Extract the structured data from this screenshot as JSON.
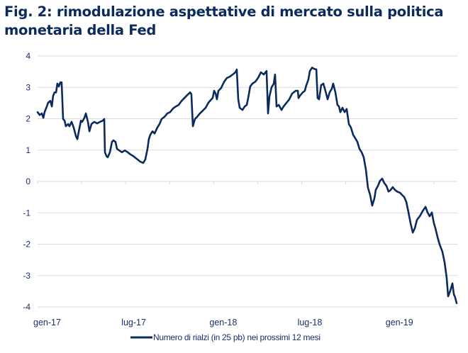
{
  "title": "Fig. 2: rimodulazione aspettative di mercato sulla politica monetaria della Fed",
  "chart_data": {
    "type": "line",
    "title": "Fig. 2: rimodulazione aspettative di mercato sulla politica monetaria della Fed",
    "xlabel": "",
    "ylabel": "",
    "ylim": [
      -4,
      4
    ],
    "yticks": [
      "4",
      "3",
      "2",
      "1",
      "0",
      "-1",
      "-2",
      "-3",
      "-4"
    ],
    "ytick_values": [
      4,
      3,
      2,
      1,
      0,
      -1,
      -2,
      -3,
      -4
    ],
    "xlim_months_from_gen17": [
      0,
      28.6
    ],
    "xticks": [
      {
        "label": "gen-17",
        "month": 0
      },
      {
        "label": "lug-17",
        "month": 6
      },
      {
        "label": "gen-18",
        "month": 12
      },
      {
        "label": "lug-18",
        "month": 18
      },
      {
        "label": "gen-19",
        "month": 24
      }
    ],
    "minor_tick_months": [
      0,
      3,
      6,
      9,
      12,
      15,
      18,
      21,
      24,
      27
    ],
    "grid": true,
    "legend_position": "bottom",
    "color": "#0b2a5e",
    "series": [
      {
        "name": "Numero di rialzi  (in 25 pb) nei prossimi 12 mesi",
        "x_unit": "months since gen-17",
        "points": [
          [
            0.0,
            2.21
          ],
          [
            0.14,
            2.12
          ],
          [
            0.29,
            2.17
          ],
          [
            0.39,
            2.03
          ],
          [
            0.48,
            2.21
          ],
          [
            0.63,
            2.39
          ],
          [
            0.72,
            2.51
          ],
          [
            0.87,
            2.57
          ],
          [
            0.97,
            2.39
          ],
          [
            1.06,
            2.73
          ],
          [
            1.16,
            2.84
          ],
          [
            1.26,
            2.84
          ],
          [
            1.35,
            3.12
          ],
          [
            1.45,
            3.03
          ],
          [
            1.55,
            3.16
          ],
          [
            1.64,
            3.16
          ],
          [
            1.74,
            1.99
          ],
          [
            1.84,
            1.94
          ],
          [
            1.93,
            1.76
          ],
          [
            2.08,
            1.83
          ],
          [
            2.17,
            1.76
          ],
          [
            2.32,
            1.9
          ],
          [
            2.46,
            1.72
          ],
          [
            2.61,
            1.45
          ],
          [
            2.71,
            1.35
          ],
          [
            2.8,
            1.58
          ],
          [
            2.95,
            1.94
          ],
          [
            3.04,
            1.9
          ],
          [
            3.19,
            2.03
          ],
          [
            3.29,
            2.17
          ],
          [
            3.43,
            1.9
          ],
          [
            3.53,
            1.6
          ],
          [
            3.67,
            1.83
          ],
          [
            3.86,
            1.9
          ],
          [
            4.06,
            1.85
          ],
          [
            4.25,
            1.9
          ],
          [
            4.44,
            1.94
          ],
          [
            4.54,
            1.99
          ],
          [
            4.59,
            0.93
          ],
          [
            4.69,
            0.81
          ],
          [
            4.78,
            0.77
          ],
          [
            4.93,
            0.93
          ],
          [
            5.07,
            1.26
          ],
          [
            5.17,
            1.31
          ],
          [
            5.31,
            1.26
          ],
          [
            5.41,
            1.04
          ],
          [
            5.56,
            0.99
          ],
          [
            5.75,
            0.93
          ],
          [
            5.94,
            0.99
          ],
          [
            6.14,
            0.93
          ],
          [
            6.33,
            0.86
          ],
          [
            6.52,
            0.81
          ],
          [
            6.62,
            0.77
          ],
          [
            6.81,
            0.7
          ],
          [
            7.0,
            0.63
          ],
          [
            7.2,
            0.59
          ],
          [
            7.34,
            0.7
          ],
          [
            7.49,
            1.04
          ],
          [
            7.58,
            1.35
          ],
          [
            7.68,
            1.49
          ],
          [
            7.83,
            1.6
          ],
          [
            7.97,
            1.53
          ],
          [
            8.16,
            1.72
          ],
          [
            8.31,
            1.83
          ],
          [
            8.45,
            1.99
          ],
          [
            8.65,
            2.06
          ],
          [
            8.84,
            2.17
          ],
          [
            9.03,
            2.21
          ],
          [
            9.23,
            2.33
          ],
          [
            9.42,
            2.39
          ],
          [
            9.61,
            2.44
          ],
          [
            9.81,
            2.57
          ],
          [
            10.0,
            2.66
          ],
          [
            10.19,
            2.75
          ],
          [
            10.39,
            2.84
          ],
          [
            10.48,
            2.78
          ],
          [
            10.58,
            1.76
          ],
          [
            10.72,
            1.99
          ],
          [
            10.87,
            2.06
          ],
          [
            11.06,
            2.17
          ],
          [
            11.26,
            2.26
          ],
          [
            11.45,
            2.35
          ],
          [
            11.64,
            2.51
          ],
          [
            11.84,
            2.62
          ],
          [
            11.93,
            2.66
          ],
          [
            12.03,
            2.89
          ],
          [
            12.13,
            2.8
          ],
          [
            12.22,
            2.62
          ],
          [
            12.32,
            2.89
          ],
          [
            12.51,
            2.98
          ],
          [
            12.71,
            3.18
          ],
          [
            12.9,
            3.3
          ],
          [
            13.09,
            3.34
          ],
          [
            13.29,
            3.41
          ],
          [
            13.48,
            3.48
          ],
          [
            13.57,
            3.57
          ],
          [
            13.67,
            2.62
          ],
          [
            13.77,
            2.35
          ],
          [
            13.96,
            2.28
          ],
          [
            14.11,
            2.39
          ],
          [
            14.25,
            2.44
          ],
          [
            14.35,
            2.66
          ],
          [
            14.49,
            3.03
          ],
          [
            14.64,
            3.12
          ],
          [
            14.83,
            3.18
          ],
          [
            15.02,
            3.3
          ],
          [
            15.22,
            3.48
          ],
          [
            15.41,
            3.41
          ],
          [
            15.6,
            3.52
          ],
          [
            15.7,
            2.17
          ],
          [
            15.8,
            2.71
          ],
          [
            15.94,
            3.0
          ],
          [
            16.09,
            3.12
          ],
          [
            16.18,
            3.41
          ],
          [
            16.28,
            2.39
          ],
          [
            16.43,
            2.44
          ],
          [
            16.62,
            2.28
          ],
          [
            16.76,
            2.39
          ],
          [
            16.96,
            2.51
          ],
          [
            17.15,
            2.62
          ],
          [
            17.34,
            2.8
          ],
          [
            17.58,
            2.89
          ],
          [
            17.73,
            2.89
          ],
          [
            17.78,
            2.66
          ],
          [
            17.87,
            2.73
          ],
          [
            18.07,
            2.84
          ],
          [
            18.21,
            2.89
          ],
          [
            18.31,
            3.07
          ],
          [
            18.45,
            3.25
          ],
          [
            18.55,
            3.52
          ],
          [
            18.7,
            3.63
          ],
          [
            18.84,
            3.59
          ],
          [
            18.99,
            3.57
          ],
          [
            19.08,
            2.66
          ],
          [
            19.18,
            2.62
          ],
          [
            19.32,
            3.07
          ],
          [
            19.47,
            3.12
          ],
          [
            19.61,
            2.89
          ],
          [
            19.76,
            2.62
          ],
          [
            19.9,
            2.84
          ],
          [
            20.05,
            2.96
          ],
          [
            20.14,
            3.12
          ],
          [
            20.29,
            2.84
          ],
          [
            20.43,
            2.44
          ],
          [
            20.53,
            2.39
          ],
          [
            20.63,
            2.21
          ],
          [
            20.77,
            2.35
          ],
          [
            20.92,
            2.21
          ],
          [
            21.06,
            2.31
          ],
          [
            21.21,
            1.83
          ],
          [
            21.35,
            1.72
          ],
          [
            21.5,
            1.49
          ],
          [
            21.64,
            1.38
          ],
          [
            21.79,
            1.26
          ],
          [
            21.93,
            1.04
          ],
          [
            22.08,
            0.93
          ],
          [
            22.22,
            0.77
          ],
          [
            22.37,
            0.38
          ],
          [
            22.51,
            -0.2
          ],
          [
            22.66,
            -0.43
          ],
          [
            22.8,
            -0.77
          ],
          [
            22.95,
            -0.54
          ],
          [
            23.04,
            -0.27
          ],
          [
            23.19,
            -0.14
          ],
          [
            23.33,
            0.02
          ],
          [
            23.48,
            0.09
          ],
          [
            23.62,
            -0.05
          ],
          [
            23.77,
            -0.14
          ],
          [
            23.91,
            -0.32
          ],
          [
            24.06,
            -0.27
          ],
          [
            24.2,
            -0.18
          ],
          [
            24.35,
            -0.27
          ],
          [
            24.49,
            -0.32
          ],
          [
            24.69,
            -0.36
          ],
          [
            24.83,
            -0.43
          ],
          [
            24.98,
            -0.5
          ],
          [
            25.12,
            -0.65
          ],
          [
            25.27,
            -0.99
          ],
          [
            25.41,
            -1.33
          ],
          [
            25.56,
            -1.63
          ],
          [
            25.7,
            -1.49
          ],
          [
            25.85,
            -1.22
          ],
          [
            26.04,
            -1.11
          ],
          [
            26.23,
            -0.95
          ],
          [
            26.43,
            -0.81
          ],
          [
            26.57,
            -0.99
          ],
          [
            26.71,
            -1.11
          ],
          [
            26.86,
            -0.99
          ],
          [
            27.0,
            -1.33
          ],
          [
            27.1,
            -1.49
          ],
          [
            27.25,
            -1.78
          ],
          [
            27.39,
            -2.01
          ],
          [
            27.58,
            -2.24
          ],
          [
            27.73,
            -2.58
          ],
          [
            27.87,
            -3.07
          ],
          [
            27.97,
            -3.66
          ],
          [
            28.12,
            -3.48
          ],
          [
            28.26,
            -3.25
          ],
          [
            28.36,
            -3.59
          ],
          [
            28.45,
            -3.7
          ],
          [
            28.55,
            -3.88
          ]
        ]
      }
    ]
  },
  "legend": {
    "label": "Numero di rialzi  (in 25 pb) nei prossimi 12 mesi"
  }
}
